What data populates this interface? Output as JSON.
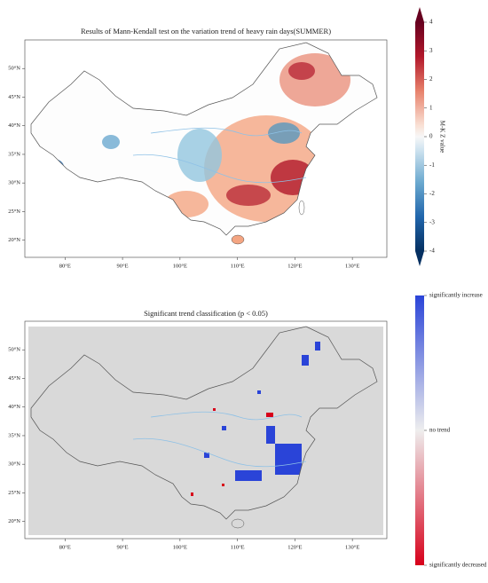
{
  "chart_data": [
    {
      "type": "map",
      "title": "Results of Mann-Kendall test on the variation trend of heavy rain days(SUMMER)",
      "xlim": [
        73,
        136
      ],
      "ylim": [
        17,
        55
      ],
      "xticks": [
        {
          "value": 80,
          "label": "80°E"
        },
        {
          "value": 90,
          "label": "90°E"
        },
        {
          "value": 100,
          "label": "100°E"
        },
        {
          "value": 110,
          "label": "110°E"
        },
        {
          "value": 120,
          "label": "120°E"
        },
        {
          "value": 130,
          "label": "130°E"
        }
      ],
      "yticks": [
        {
          "value": 20,
          "label": "20°N"
        },
        {
          "value": 25,
          "label": "25°N"
        },
        {
          "value": 30,
          "label": "30°N"
        },
        {
          "value": 35,
          "label": "35°N"
        },
        {
          "value": 40,
          "label": "40°N"
        },
        {
          "value": 45,
          "label": "45°N"
        },
        {
          "value": 50,
          "label": "50°N"
        }
      ],
      "colorbar": {
        "label": "M-K Z value",
        "lim": [
          -4,
          4
        ],
        "ticks": [
          -4,
          -3,
          -2,
          -1,
          0,
          1,
          2,
          3,
          4
        ]
      }
    },
    {
      "type": "map",
      "title": "Significant trend classification (p < 0.05)",
      "xlim": [
        73,
        136
      ],
      "ylim": [
        17,
        55
      ],
      "xticks": [
        {
          "value": 80,
          "label": "80°E"
        },
        {
          "value": 90,
          "label": "90°E"
        },
        {
          "value": 100,
          "label": "100°E"
        },
        {
          "value": 110,
          "label": "110°E"
        },
        {
          "value": 120,
          "label": "120°E"
        },
        {
          "value": 130,
          "label": "130°E"
        }
      ],
      "yticks": [
        {
          "value": 20,
          "label": "20°N"
        },
        {
          "value": 25,
          "label": "25°N"
        },
        {
          "value": 30,
          "label": "30°N"
        },
        {
          "value": 35,
          "label": "35°N"
        },
        {
          "value": 40,
          "label": "40°N"
        },
        {
          "value": 45,
          "label": "45°N"
        },
        {
          "value": 50,
          "label": "50°N"
        }
      ],
      "colorbar": {
        "lim": [
          -1,
          1
        ],
        "ticks": [
          {
            "value": -1,
            "label": "significantly decreased"
          },
          {
            "value": 0,
            "label": "no trend"
          },
          {
            "value": 1,
            "label": "significantly increase"
          }
        ]
      }
    }
  ]
}
